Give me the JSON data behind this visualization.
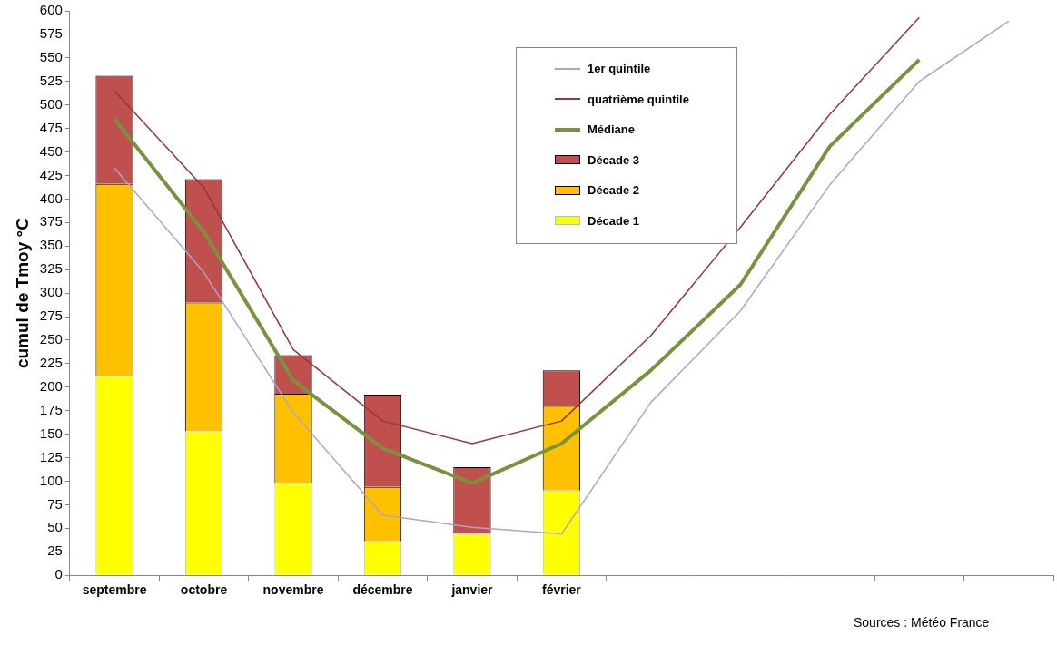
{
  "chart_data": {
    "type": "bar",
    "stacked": true,
    "ylabel": "cumul de Tmoy °C",
    "categories": [
      "septembre",
      "octobre",
      "novembre",
      "décembre",
      "janvier",
      "février",
      null,
      null,
      null,
      null,
      null
    ],
    "ylim": [
      0,
      600
    ],
    "yticks": [
      0,
      25,
      50,
      75,
      100,
      125,
      150,
      175,
      200,
      225,
      250,
      275,
      300,
      325,
      350,
      375,
      400,
      425,
      450,
      475,
      500,
      525,
      550,
      575,
      600
    ],
    "grid": false,
    "legend": "top right",
    "series": [
      {
        "name": "Décade 1",
        "color": "#ffff00",
        "values": [
          212,
          153,
          98,
          36,
          44,
          90,
          null,
          null,
          null,
          null,
          null
        ]
      },
      {
        "name": "Décade 2",
        "color": "#ffc000",
        "values": [
          204,
          137,
          95,
          58,
          0,
          90,
          null,
          null,
          null,
          null,
          null
        ]
      },
      {
        "name": "Décade 3",
        "color": "#c0504d",
        "values": [
          115,
          131,
          41,
          98,
          71,
          38,
          null,
          null,
          null,
          null,
          null
        ]
      },
      {
        "name": "Médiane",
        "type": "line",
        "color": "#77933c",
        "values": [
          485,
          365,
          207,
          135,
          98,
          140,
          218,
          309,
          456,
          548,
          null
        ]
      },
      {
        "name": "quatrième quintile",
        "type": "line",
        "color": "#953735",
        "values": [
          515,
          412,
          240,
          164,
          140,
          164,
          255,
          370,
          490,
          593,
          null
        ]
      },
      {
        "name": "1er quintile",
        "type": "line",
        "color": "#b3a2c7",
        "values": [
          433,
          322,
          173,
          64,
          51,
          44,
          184,
          281,
          415,
          525,
          589
        ]
      }
    ],
    "annotations": [
      "Sources : Météo France"
    ]
  }
}
